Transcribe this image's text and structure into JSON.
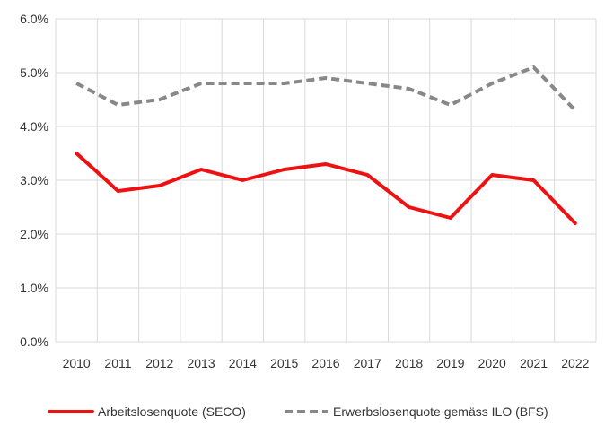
{
  "chart_data": {
    "type": "line",
    "title": "",
    "xlabel": "",
    "ylabel": "",
    "x": [
      2010,
      2011,
      2012,
      2013,
      2014,
      2015,
      2016,
      2017,
      2018,
      2019,
      2020,
      2021,
      2022
    ],
    "x_tick_labels": [
      "2010",
      "2011",
      "2012",
      "2013",
      "2014",
      "2015",
      "2016",
      "2017",
      "2018",
      "2019",
      "2020",
      "2021",
      "2022"
    ],
    "ylim": [
      0,
      6
    ],
    "y_ticks": [
      0,
      1,
      2,
      3,
      4,
      5,
      6
    ],
    "y_tick_labels": [
      "0.0%",
      "1.0%",
      "2.0%",
      "3.0%",
      "4.0%",
      "5.0%",
      "6.0%"
    ],
    "grid": true,
    "legend_position": "bottom",
    "series": [
      {
        "name": "Arbeitslosenquote (SECO)",
        "color": "#ee1111",
        "style": "solid",
        "values": [
          3.5,
          2.8,
          2.9,
          3.2,
          3.0,
          3.2,
          3.3,
          3.1,
          2.5,
          2.3,
          3.1,
          3.0,
          2.2
        ]
      },
      {
        "name": "Erwerbslosenquote gemäss ILO (BFS)",
        "color": "#888888",
        "style": "dashed",
        "values": [
          4.8,
          4.4,
          4.5,
          4.8,
          4.8,
          4.8,
          4.9,
          4.8,
          4.7,
          4.4,
          4.8,
          5.1,
          4.3
        ]
      }
    ]
  }
}
